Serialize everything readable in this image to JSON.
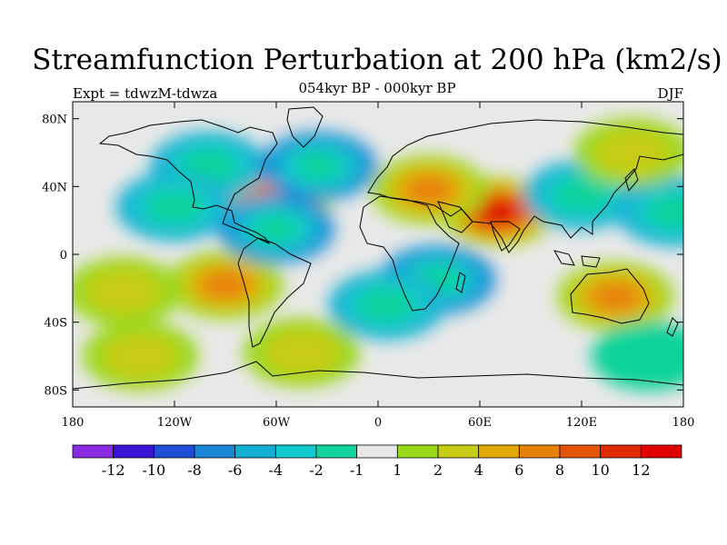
{
  "title": "Streamfunction Perturbation at 200 hPa (km2/s)",
  "subtitle": "054kyr BP - 000kyr BP",
  "experiment_label": "Expt = tdwzM-tdwza",
  "season_label": "DJF",
  "axes": {
    "y_ticks": [
      "80N",
      "40N",
      "0",
      "40S",
      "80S"
    ],
    "x_ticks": [
      "180",
      "120W",
      "60W",
      "0",
      "60E",
      "120E",
      "180"
    ]
  },
  "colorbar": {
    "labels": [
      "-12",
      "-10",
      "-8",
      "-6",
      "-4",
      "-2",
      "-1",
      "1",
      "2",
      "4",
      "6",
      "8",
      "10",
      "12"
    ],
    "colors": [
      "#8a2be2",
      "#3a14d6",
      "#1f4fd6",
      "#1a86d8",
      "#12aed4",
      "#12c9cf",
      "#11d39b",
      "#e8e8e8",
      "#9ad81a",
      "#c8cc14",
      "#e3aa0a",
      "#e88109",
      "#e35405",
      "#e02a04",
      "#e00000"
    ]
  },
  "chart_data": {
    "type": "heatmap",
    "title": "Streamfunction Perturbation at 200 hPa (km2/s)",
    "subtitle": "054kyr BP - 000kyr BP",
    "experiment": "Expt = tdwzM-tdwza",
    "season": "DJF",
    "x_range": [
      -180,
      180
    ],
    "y_range": [
      -90,
      90
    ],
    "levels": [
      -12,
      -10,
      -8,
      -6,
      -4,
      -2,
      -1,
      1,
      2,
      4,
      6,
      8,
      10,
      12
    ],
    "features": [
      {
        "lon": 70,
        "lat": 25,
        "value": 12
      },
      {
        "lon": 30,
        "lat": 38,
        "value": 6
      },
      {
        "lon": -60,
        "lat": 35,
        "value": 6
      },
      {
        "lon": 140,
        "lat": -25,
        "value": 6
      },
      {
        "lon": -90,
        "lat": -18,
        "value": 6
      },
      {
        "lon": -150,
        "lat": -22,
        "value": 2
      },
      {
        "lon": -45,
        "lat": -58,
        "value": 2
      },
      {
        "lon": -140,
        "lat": -60,
        "value": 2
      },
      {
        "lon": 160,
        "lat": -60,
        "value": -1
      },
      {
        "lon": -100,
        "lat": 52,
        "value": -4
      },
      {
        "lon": -35,
        "lat": 52,
        "value": -6
      },
      {
        "lon": -60,
        "lat": 15,
        "value": -6
      },
      {
        "lon": -120,
        "lat": 28,
        "value": -4
      },
      {
        "lon": 35,
        "lat": -15,
        "value": -6
      },
      {
        "lon": 5,
        "lat": -30,
        "value": -4
      },
      {
        "lon": 120,
        "lat": 35,
        "value": -4
      },
      {
        "lon": 175,
        "lat": 25,
        "value": -4
      },
      {
        "lon": 150,
        "lat": 60,
        "value": 2
      }
    ]
  }
}
